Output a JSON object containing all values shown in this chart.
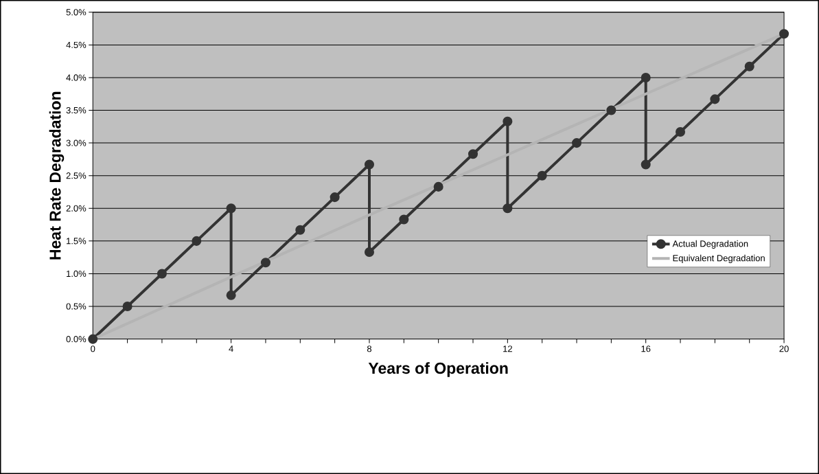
{
  "chart_data": {
    "type": "line",
    "xlabel": "Years of Operation",
    "ylabel": "Heat Rate Degradation",
    "xlim": [
      0,
      20
    ],
    "xticks": [
      0,
      {
        "value": 1,
        "label": null
      },
      {
        "value": 2,
        "label": null
      },
      {
        "value": 3,
        "label": null
      },
      4,
      {
        "value": 5,
        "label": null
      },
      {
        "value": 6,
        "label": null
      },
      {
        "value": 7,
        "label": null
      },
      8,
      {
        "value": 9,
        "label": null
      },
      {
        "value": 10,
        "label": null
      },
      {
        "value": 11,
        "label": null
      },
      12,
      {
        "value": 13,
        "label": null
      },
      {
        "value": 14,
        "label": null
      },
      {
        "value": 15,
        "label": null
      },
      16,
      {
        "value": 17,
        "label": null
      },
      {
        "value": 18,
        "label": null
      },
      {
        "value": 19,
        "label": null
      },
      20
    ],
    "ylim": [
      0,
      5
    ],
    "yticks": [
      {
        "value": 0,
        "label": "0.0%"
      },
      {
        "value": 0.5,
        "label": "0.5%"
      },
      {
        "value": 1,
        "label": "1.0%"
      },
      {
        "value": 1.5,
        "label": "1.5%"
      },
      {
        "value": 2,
        "label": "2.0%"
      },
      {
        "value": 2.5,
        "label": "2.5%"
      },
      {
        "value": 3,
        "label": "3.0%"
      },
      {
        "value": 3.5,
        "label": "3.5%"
      },
      {
        "value": 4,
        "label": "4.0%"
      },
      {
        "value": 4.5,
        "label": "4.5%"
      },
      {
        "value": 5,
        "label": "5.0%"
      }
    ],
    "grid": "y",
    "legend": "bottom right",
    "series": [
      {
        "name": "Actual Degradation",
        "color": "#333333",
        "marker": "circle",
        "x": [
          0,
          1,
          2,
          3,
          4,
          4,
          5,
          6,
          7,
          8,
          8,
          9,
          10,
          11,
          12,
          12,
          13,
          14,
          15,
          16,
          16,
          17,
          18,
          19,
          20
        ],
        "values": [
          0,
          0.5,
          1.0,
          1.5,
          2.0,
          0.67,
          1.17,
          1.67,
          2.17,
          2.67,
          1.33,
          1.83,
          2.33,
          2.83,
          3.33,
          2.0,
          2.5,
          3.0,
          3.5,
          4.0,
          2.67,
          3.17,
          3.67,
          4.17,
          4.67
        ]
      },
      {
        "name": "Equivalent Degradation",
        "color": "#b4b4b4",
        "marker": "none",
        "x": [
          0,
          4,
          8,
          12,
          16,
          20
        ],
        "values": [
          0,
          0.95,
          1.9,
          2.82,
          3.75,
          4.67
        ]
      }
    ]
  }
}
